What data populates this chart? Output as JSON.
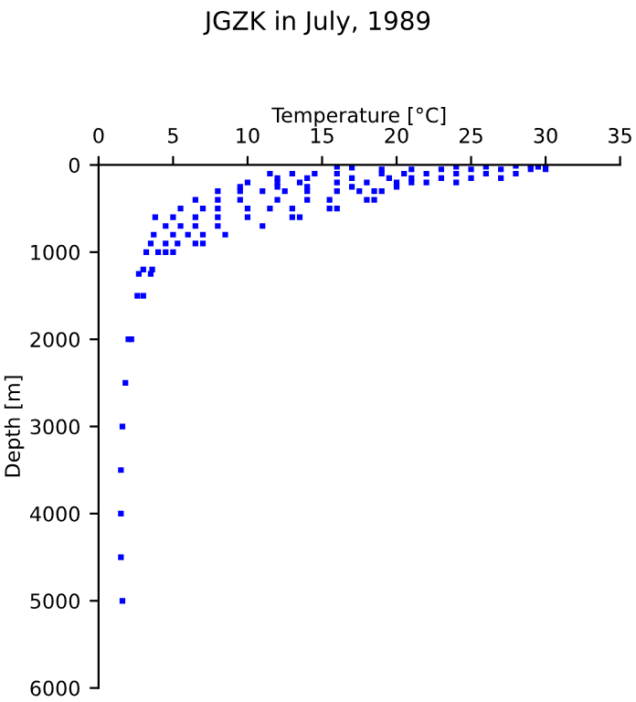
{
  "chart_data": {
    "type": "scatter",
    "title": "JGZK in July, 1989",
    "xlabel": "Temperature [°C]",
    "ylabel": "Depth [m]",
    "xlim": [
      0,
      35
    ],
    "xticks": [
      0,
      5,
      10,
      15,
      20,
      25,
      30,
      35
    ],
    "ylim": [
      6000,
      0
    ],
    "yticks": [
      0,
      1000,
      2000,
      3000,
      4000,
      5000,
      6000
    ],
    "grid": false,
    "legend": false,
    "marker": "square",
    "series": [
      {
        "color": "#0000ff",
        "x": [
          2.2,
          2.0,
          1.8,
          1.6,
          1.5,
          1.5,
          1.5,
          1.6,
          2.6,
          3.0,
          2.7,
          3.5,
          3.0,
          3.6,
          3.2,
          4,
          5,
          4.5,
          3.5,
          4.5,
          5.3,
          6.5,
          7,
          3.7,
          5,
          6,
          7,
          8.5,
          4.5,
          5.5,
          6.5,
          8,
          11,
          3.8,
          5,
          6.5,
          8,
          10,
          13,
          13.5,
          5.5,
          7,
          8,
          10,
          11.5,
          13,
          15.5,
          16,
          6.5,
          8,
          9.5,
          12,
          14,
          15.5,
          18,
          18.5,
          8,
          9.5,
          11,
          12.5,
          14,
          16,
          17.5,
          18.5,
          19,
          9.5,
          12,
          14,
          17,
          20,
          10,
          12,
          13.5,
          16,
          18,
          20,
          21,
          22,
          24,
          12,
          14,
          17,
          19.5,
          21,
          23,
          25,
          27,
          11.5,
          13,
          14.5,
          16,
          19,
          20.5,
          22,
          24,
          26,
          28,
          19,
          21,
          23,
          25,
          27,
          29,
          30,
          16,
          17,
          24,
          26,
          28,
          29,
          30,
          29.5
        ],
        "values": [
          2000,
          2000,
          2500,
          3000,
          3500,
          4000,
          4500,
          5000,
          1500,
          1500,
          1250,
          1250,
          1200,
          1200,
          1000,
          1000,
          1000,
          1000,
          900,
          900,
          900,
          900,
          900,
          800,
          800,
          800,
          800,
          800,
          700,
          700,
          700,
          700,
          700,
          600,
          600,
          600,
          600,
          600,
          600,
          600,
          500,
          500,
          500,
          500,
          500,
          500,
          500,
          500,
          400,
          400,
          400,
          400,
          400,
          400,
          400,
          400,
          300,
          300,
          300,
          300,
          300,
          300,
          300,
          300,
          300,
          250,
          250,
          250,
          250,
          250,
          200,
          200,
          200,
          200,
          200,
          200,
          200,
          200,
          200,
          150,
          150,
          150,
          150,
          150,
          150,
          150,
          150,
          100,
          100,
          100,
          100,
          100,
          100,
          100,
          100,
          100,
          100,
          50,
          50,
          50,
          50,
          50,
          50,
          50,
          20,
          30,
          20,
          20,
          10,
          10,
          0,
          20
        ]
      }
    ]
  }
}
